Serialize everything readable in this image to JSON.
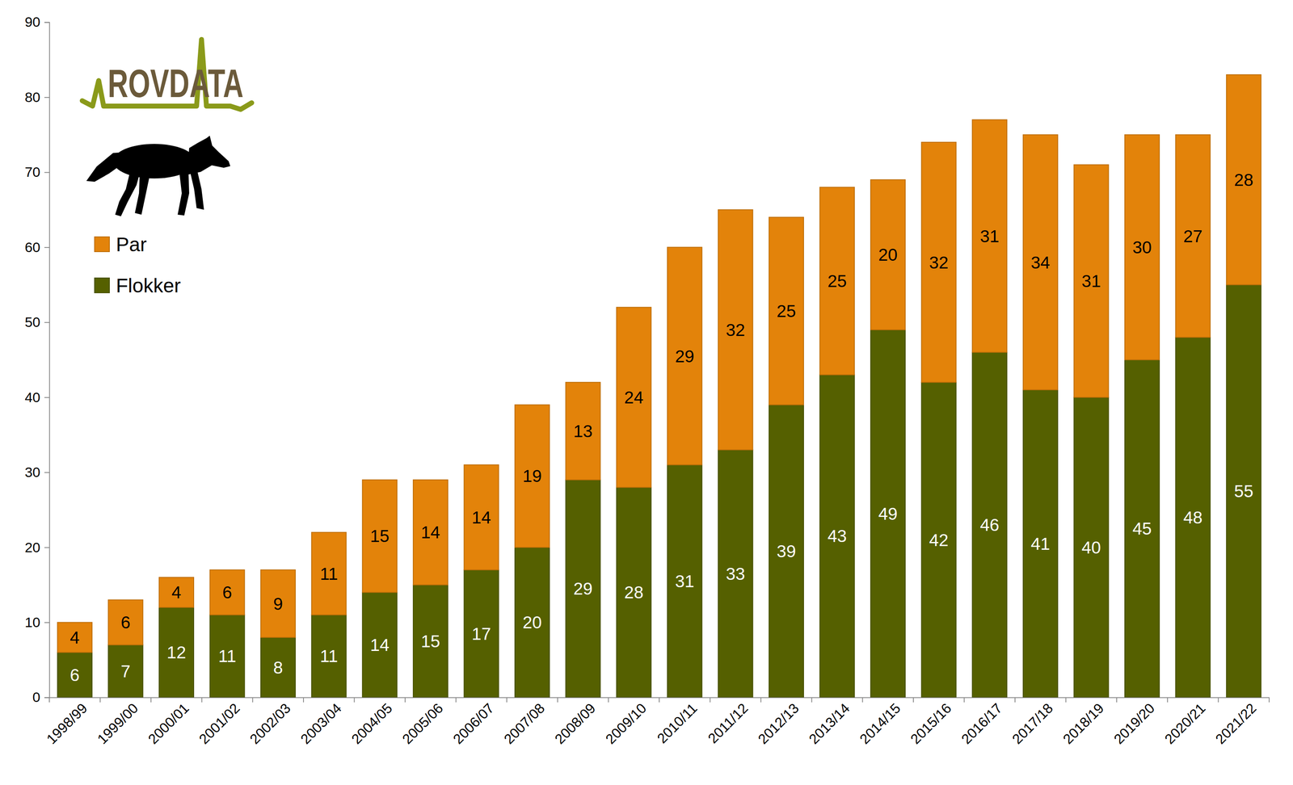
{
  "chart_data": {
    "type": "bar",
    "stacked": true,
    "data_labels": true,
    "grid": false,
    "legend": "top-left",
    "annotations": [
      "ROVDATA"
    ],
    "categories": [
      "1998/99",
      "1999/00",
      "2000/01",
      "2001/02",
      "2002/03",
      "2003/04",
      "2004/05",
      "2005/06",
      "2006/07",
      "2007/08",
      "2008/09",
      "2009/10",
      "2010/11",
      "2011/12",
      "2012/13",
      "2013/14",
      "2014/15",
      "2015/16",
      "2016/17",
      "2017/18",
      "2018/19",
      "2019/20",
      "2020/21",
      "2021/22"
    ],
    "series": [
      {
        "name": "Flokker",
        "color": "#556000",
        "values": [
          6,
          7,
          12,
          11,
          8,
          11,
          14,
          15,
          17,
          20,
          29,
          28,
          31,
          33,
          39,
          43,
          49,
          42,
          46,
          41,
          40,
          45,
          48,
          55
        ]
      },
      {
        "name": "Par",
        "color": "#e3830a",
        "values": [
          4,
          6,
          4,
          6,
          9,
          11,
          15,
          14,
          14,
          19,
          13,
          24,
          29,
          32,
          25,
          25,
          20,
          32,
          31,
          34,
          31,
          30,
          27,
          28
        ]
      }
    ],
    "ylim": [
      0,
      90
    ],
    "yticks": [
      0,
      10,
      20,
      30,
      40,
      50,
      60,
      70,
      80,
      90
    ]
  }
}
